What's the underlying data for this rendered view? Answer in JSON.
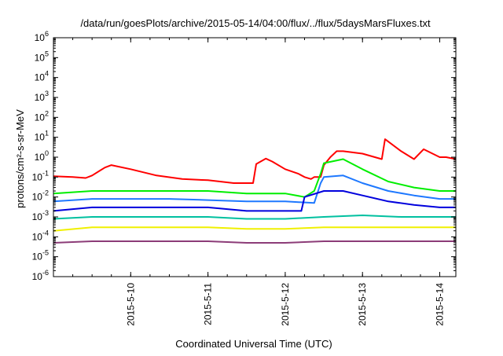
{
  "chart_data": {
    "type": "line",
    "title": "/data/run/goesPlots/archive/2015-05-14/04:00/flux/../flux/5daysMarsFluxes.txt",
    "xlabel": "Coordinated Universal Time (UTC)",
    "ylabel": "protons/cm²-s-sr-MeV",
    "yscale": "log",
    "grid": false,
    "xlim": [
      "2015-05-09 00:00",
      "2015-05-14 05:00"
    ],
    "ylim": [
      1e-06,
      1000000.0
    ],
    "x_ticks": [
      "2015-5-10",
      "2015-5-11",
      "2015-5-12",
      "2015-5-13",
      "2015-5-14"
    ],
    "y_ticks": [
      {
        "value": 1e-06,
        "base": "10",
        "exp": "-6"
      },
      {
        "value": 1e-05,
        "base": "10",
        "exp": "-5"
      },
      {
        "value": 0.0001,
        "base": "10",
        "exp": "-4"
      },
      {
        "value": 0.001,
        "base": "10",
        "exp": "-3"
      },
      {
        "value": 0.01,
        "base": "10",
        "exp": "-2"
      },
      {
        "value": 0.1,
        "base": "10",
        "exp": "-1"
      },
      {
        "value": 1,
        "base": "10",
        "exp": "0"
      },
      {
        "value": 10,
        "base": "10",
        "exp": "1"
      },
      {
        "value": 100,
        "base": "10",
        "exp": "2"
      },
      {
        "value": 1000,
        "base": "10",
        "exp": "3"
      },
      {
        "value": 10000,
        "base": "10",
        "exp": "4"
      },
      {
        "value": 100000,
        "base": "10",
        "exp": "5"
      },
      {
        "value": 1000000,
        "base": "10",
        "exp": "6"
      }
    ],
    "series": [
      {
        "color": "#ff0000",
        "x": [
          "2015-05-09 00:00",
          "2015-05-09 06:00",
          "2015-05-09 10:00",
          "2015-05-09 12:00",
          "2015-05-09 16:00",
          "2015-05-09 18:00",
          "2015-05-10 00:00",
          "2015-05-10 08:00",
          "2015-05-10 16:00",
          "2015-05-11 00:00",
          "2015-05-11 08:00",
          "2015-05-11 14:00",
          "2015-05-11 15:00",
          "2015-05-11 18:00",
          "2015-05-11 20:00",
          "2015-05-12 00:00",
          "2015-05-12 04:00",
          "2015-05-12 06:00",
          "2015-05-12 08:00",
          "2015-05-12 09:00",
          "2015-05-12 11:00",
          "2015-05-12 12:00",
          "2015-05-12 14:00",
          "2015-05-12 16:00",
          "2015-05-12 18:00",
          "2015-05-13 00:00",
          "2015-05-13 06:00",
          "2015-05-13 07:00",
          "2015-05-13 12:00",
          "2015-05-13 16:00",
          "2015-05-13 19:00",
          "2015-05-14 00:00",
          "2015-05-14 02:00",
          "2015-05-14 05:00"
        ],
        "y": [
          0.11,
          0.1,
          0.09,
          0.12,
          0.3,
          0.4,
          0.25,
          0.12,
          0.08,
          0.07,
          0.05,
          0.05,
          0.45,
          0.85,
          0.6,
          0.25,
          0.15,
          0.1,
          0.08,
          0.1,
          0.1,
          0.4,
          1.0,
          2.0,
          2.0,
          1.5,
          0.8,
          8.0,
          2.0,
          0.8,
          2.5,
          1.0,
          1.0,
          0.8
        ]
      },
      {
        "color": "#00ee00",
        "x": [
          "2015-05-09 00:00",
          "2015-05-09 12:00",
          "2015-05-10 00:00",
          "2015-05-10 12:00",
          "2015-05-11 00:00",
          "2015-05-11 12:00",
          "2015-05-12 00:00",
          "2015-05-12 06:00",
          "2015-05-12 09:00",
          "2015-05-12 11:00",
          "2015-05-12 12:00",
          "2015-05-12 18:00",
          "2015-05-13 00:00",
          "2015-05-13 08:00",
          "2015-05-13 16:00",
          "2015-05-14 00:00",
          "2015-05-14 05:00"
        ],
        "y": [
          0.015,
          0.02,
          0.02,
          0.02,
          0.02,
          0.015,
          0.015,
          0.01,
          0.02,
          0.15,
          0.5,
          0.8,
          0.25,
          0.06,
          0.03,
          0.02,
          0.02
        ]
      },
      {
        "color": "#1e78ff",
        "x": [
          "2015-05-09 00:00",
          "2015-05-09 12:00",
          "2015-05-10 00:00",
          "2015-05-10 12:00",
          "2015-05-11 00:00",
          "2015-05-11 12:00",
          "2015-05-12 00:00",
          "2015-05-12 09:00",
          "2015-05-12 11:00",
          "2015-05-12 12:00",
          "2015-05-12 18:00",
          "2015-05-13 00:00",
          "2015-05-13 08:00",
          "2015-05-13 16:00",
          "2015-05-14 00:00",
          "2015-05-14 05:00"
        ],
        "y": [
          0.006,
          0.008,
          0.008,
          0.008,
          0.007,
          0.006,
          0.006,
          0.005,
          0.05,
          0.1,
          0.12,
          0.05,
          0.02,
          0.012,
          0.008,
          0.008
        ]
      },
      {
        "color": "#0000dd",
        "x": [
          "2015-05-09 00:00",
          "2015-05-09 12:00",
          "2015-05-10 00:00",
          "2015-05-10 12:00",
          "2015-05-11 00:00",
          "2015-05-11 12:00",
          "2015-05-12 00:00",
          "2015-05-12 05:00",
          "2015-05-12 06:00",
          "2015-05-12 12:00",
          "2015-05-12 18:00",
          "2015-05-13 00:00",
          "2015-05-13 08:00",
          "2015-05-13 16:00",
          "2015-05-14 00:00",
          "2015-05-14 05:00"
        ],
        "y": [
          0.002,
          0.003,
          0.003,
          0.003,
          0.003,
          0.002,
          0.002,
          0.002,
          0.01,
          0.02,
          0.02,
          0.012,
          0.006,
          0.004,
          0.003,
          0.003
        ]
      },
      {
        "color": "#00c0a0",
        "x": [
          "2015-05-09 00:00",
          "2015-05-09 12:00",
          "2015-05-10 00:00",
          "2015-05-10 12:00",
          "2015-05-11 00:00",
          "2015-05-11 12:00",
          "2015-05-12 00:00",
          "2015-05-12 12:00",
          "2015-05-13 00:00",
          "2015-05-13 12:00",
          "2015-05-14 00:00",
          "2015-05-14 05:00"
        ],
        "y": [
          0.0008,
          0.001,
          0.001,
          0.001,
          0.001,
          0.0008,
          0.0008,
          0.001,
          0.0012,
          0.001,
          0.001,
          0.001
        ]
      },
      {
        "color": "#f0f000",
        "x": [
          "2015-05-09 00:00",
          "2015-05-09 12:00",
          "2015-05-10 00:00",
          "2015-05-10 12:00",
          "2015-05-11 00:00",
          "2015-05-11 12:00",
          "2015-05-12 00:00",
          "2015-05-12 12:00",
          "2015-05-13 00:00",
          "2015-05-13 12:00",
          "2015-05-14 00:00",
          "2015-05-14 05:00"
        ],
        "y": [
          0.0002,
          0.0003,
          0.0003,
          0.0003,
          0.0003,
          0.00025,
          0.00025,
          0.0003,
          0.0003,
          0.0003,
          0.0003,
          0.0003
        ]
      },
      {
        "color": "#8c3c78",
        "x": [
          "2015-05-09 00:00",
          "2015-05-09 12:00",
          "2015-05-10 00:00",
          "2015-05-10 12:00",
          "2015-05-11 00:00",
          "2015-05-11 12:00",
          "2015-05-12 00:00",
          "2015-05-12 12:00",
          "2015-05-13 00:00",
          "2015-05-13 12:00",
          "2015-05-14 00:00",
          "2015-05-14 05:00"
        ],
        "y": [
          5e-05,
          6e-05,
          6e-05,
          6e-05,
          6e-05,
          5e-05,
          5e-05,
          6e-05,
          6e-05,
          6e-05,
          6e-05,
          6e-05
        ]
      }
    ]
  }
}
